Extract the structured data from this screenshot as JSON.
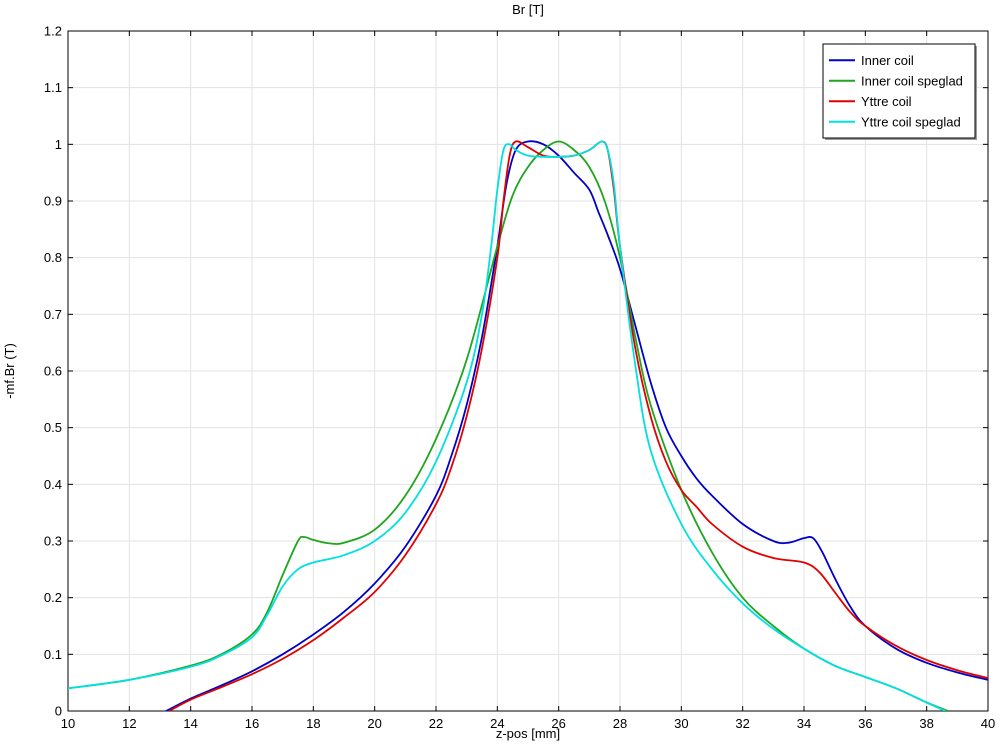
{
  "chart_data": {
    "type": "line",
    "title": "Br [T]",
    "xlabel": "z-pos [mm]",
    "ylabel": "-mf.Br (T)",
    "xlim": [
      10,
      40
    ],
    "ylim": [
      0,
      1.2
    ],
    "xticks": [
      10,
      12,
      14,
      16,
      18,
      20,
      22,
      24,
      26,
      28,
      30,
      32,
      34,
      36,
      38,
      40
    ],
    "yticks": [
      0,
      0.1,
      0.2,
      0.3,
      0.4,
      0.5,
      0.6,
      0.7,
      0.8,
      0.9,
      1,
      1.1,
      1.2
    ],
    "grid": true,
    "legend_position": "top-right",
    "series": [
      {
        "name": "Inner coil",
        "color": "#0000c8",
        "x": [
          13.2,
          14,
          15,
          16,
          17,
          18,
          19,
          20,
          21,
          22,
          22.5,
          23,
          23.5,
          24,
          24.3,
          24.6,
          25,
          25.5,
          26,
          26.5,
          27,
          27.3,
          27.6,
          28,
          28.5,
          29,
          29.5,
          30,
          30.5,
          31,
          32,
          33,
          33.5,
          34,
          34.3,
          34.6,
          35,
          35.5,
          36,
          37,
          38,
          39,
          40
        ],
        "y": [
          0,
          0.022,
          0.045,
          0.07,
          0.1,
          0.135,
          0.175,
          0.225,
          0.29,
          0.38,
          0.45,
          0.54,
          0.66,
          0.82,
          0.93,
          0.99,
          1.005,
          1.0,
          0.98,
          0.95,
          0.92,
          0.88,
          0.84,
          0.78,
          0.68,
          0.58,
          0.5,
          0.45,
          0.41,
          0.38,
          0.33,
          0.3,
          0.297,
          0.305,
          0.305,
          0.28,
          0.235,
          0.185,
          0.15,
          0.11,
          0.085,
          0.068,
          0.055
        ]
      },
      {
        "name": "Inner coil speglad",
        "color": "#1fa51f",
        "x": [
          10,
          12,
          14,
          15,
          16,
          16.5,
          17,
          17.5,
          17.7,
          18,
          18.5,
          19,
          20,
          21,
          22,
          23,
          24,
          24.5,
          25,
          25.5,
          26,
          26.5,
          27,
          27.5,
          28,
          28.5,
          29,
          30,
          31,
          32,
          33,
          34,
          35,
          36,
          37,
          38,
          38.7
        ],
        "y": [
          0.04,
          0.055,
          0.08,
          0.1,
          0.135,
          0.175,
          0.24,
          0.3,
          0.307,
          0.302,
          0.296,
          0.297,
          0.32,
          0.38,
          0.48,
          0.62,
          0.82,
          0.91,
          0.96,
          0.99,
          1.005,
          0.99,
          0.96,
          0.9,
          0.8,
          0.66,
          0.54,
          0.39,
          0.28,
          0.2,
          0.15,
          0.11,
          0.08,
          0.06,
          0.04,
          0.015,
          0
        ]
      },
      {
        "name": "Yttre coil",
        "color": "#e00000",
        "x": [
          13.3,
          14,
          15,
          16,
          17,
          18,
          19,
          20,
          21,
          22,
          22.5,
          23,
          23.5,
          24,
          24.2,
          24.4,
          24.6,
          25,
          25.5,
          26,
          26.5,
          27,
          27.4,
          27.6,
          27.8,
          28,
          28.5,
          29,
          29.5,
          30,
          30.5,
          31,
          32,
          33,
          34,
          34.5,
          35,
          35.5,
          36,
          37,
          38,
          39,
          40
        ],
        "y": [
          0,
          0.02,
          0.042,
          0.065,
          0.092,
          0.125,
          0.165,
          0.21,
          0.275,
          0.365,
          0.43,
          0.52,
          0.64,
          0.8,
          0.9,
          0.98,
          1.005,
          0.995,
          0.98,
          0.978,
          0.98,
          0.99,
          1.005,
          0.99,
          0.92,
          0.82,
          0.64,
          0.52,
          0.44,
          0.39,
          0.36,
          0.33,
          0.29,
          0.27,
          0.262,
          0.245,
          0.21,
          0.175,
          0.15,
          0.115,
          0.09,
          0.072,
          0.058
        ]
      },
      {
        "name": "Yttre coil speglad",
        "color": "#00e0e0",
        "x": [
          10,
          12,
          14,
          15,
          16,
          16.5,
          17,
          17.5,
          18,
          19,
          20,
          21,
          22,
          23,
          23.5,
          23.8,
          24,
          24.2,
          24.4,
          24.6,
          25,
          25.5,
          26,
          26.5,
          27,
          27.4,
          27.6,
          27.8,
          28,
          28.5,
          29,
          30,
          31,
          32,
          33,
          34,
          35,
          36,
          37,
          38,
          38.6
        ],
        "y": [
          0.04,
          0.055,
          0.078,
          0.098,
          0.13,
          0.17,
          0.22,
          0.25,
          0.262,
          0.275,
          0.3,
          0.35,
          0.44,
          0.58,
          0.7,
          0.82,
          0.92,
          0.99,
          1.0,
          0.99,
          0.98,
          0.978,
          0.978,
          0.98,
          0.99,
          1.005,
          0.99,
          0.93,
          0.82,
          0.61,
          0.46,
          0.33,
          0.25,
          0.19,
          0.145,
          0.11,
          0.08,
          0.06,
          0.04,
          0.015,
          0
        ]
      }
    ]
  }
}
